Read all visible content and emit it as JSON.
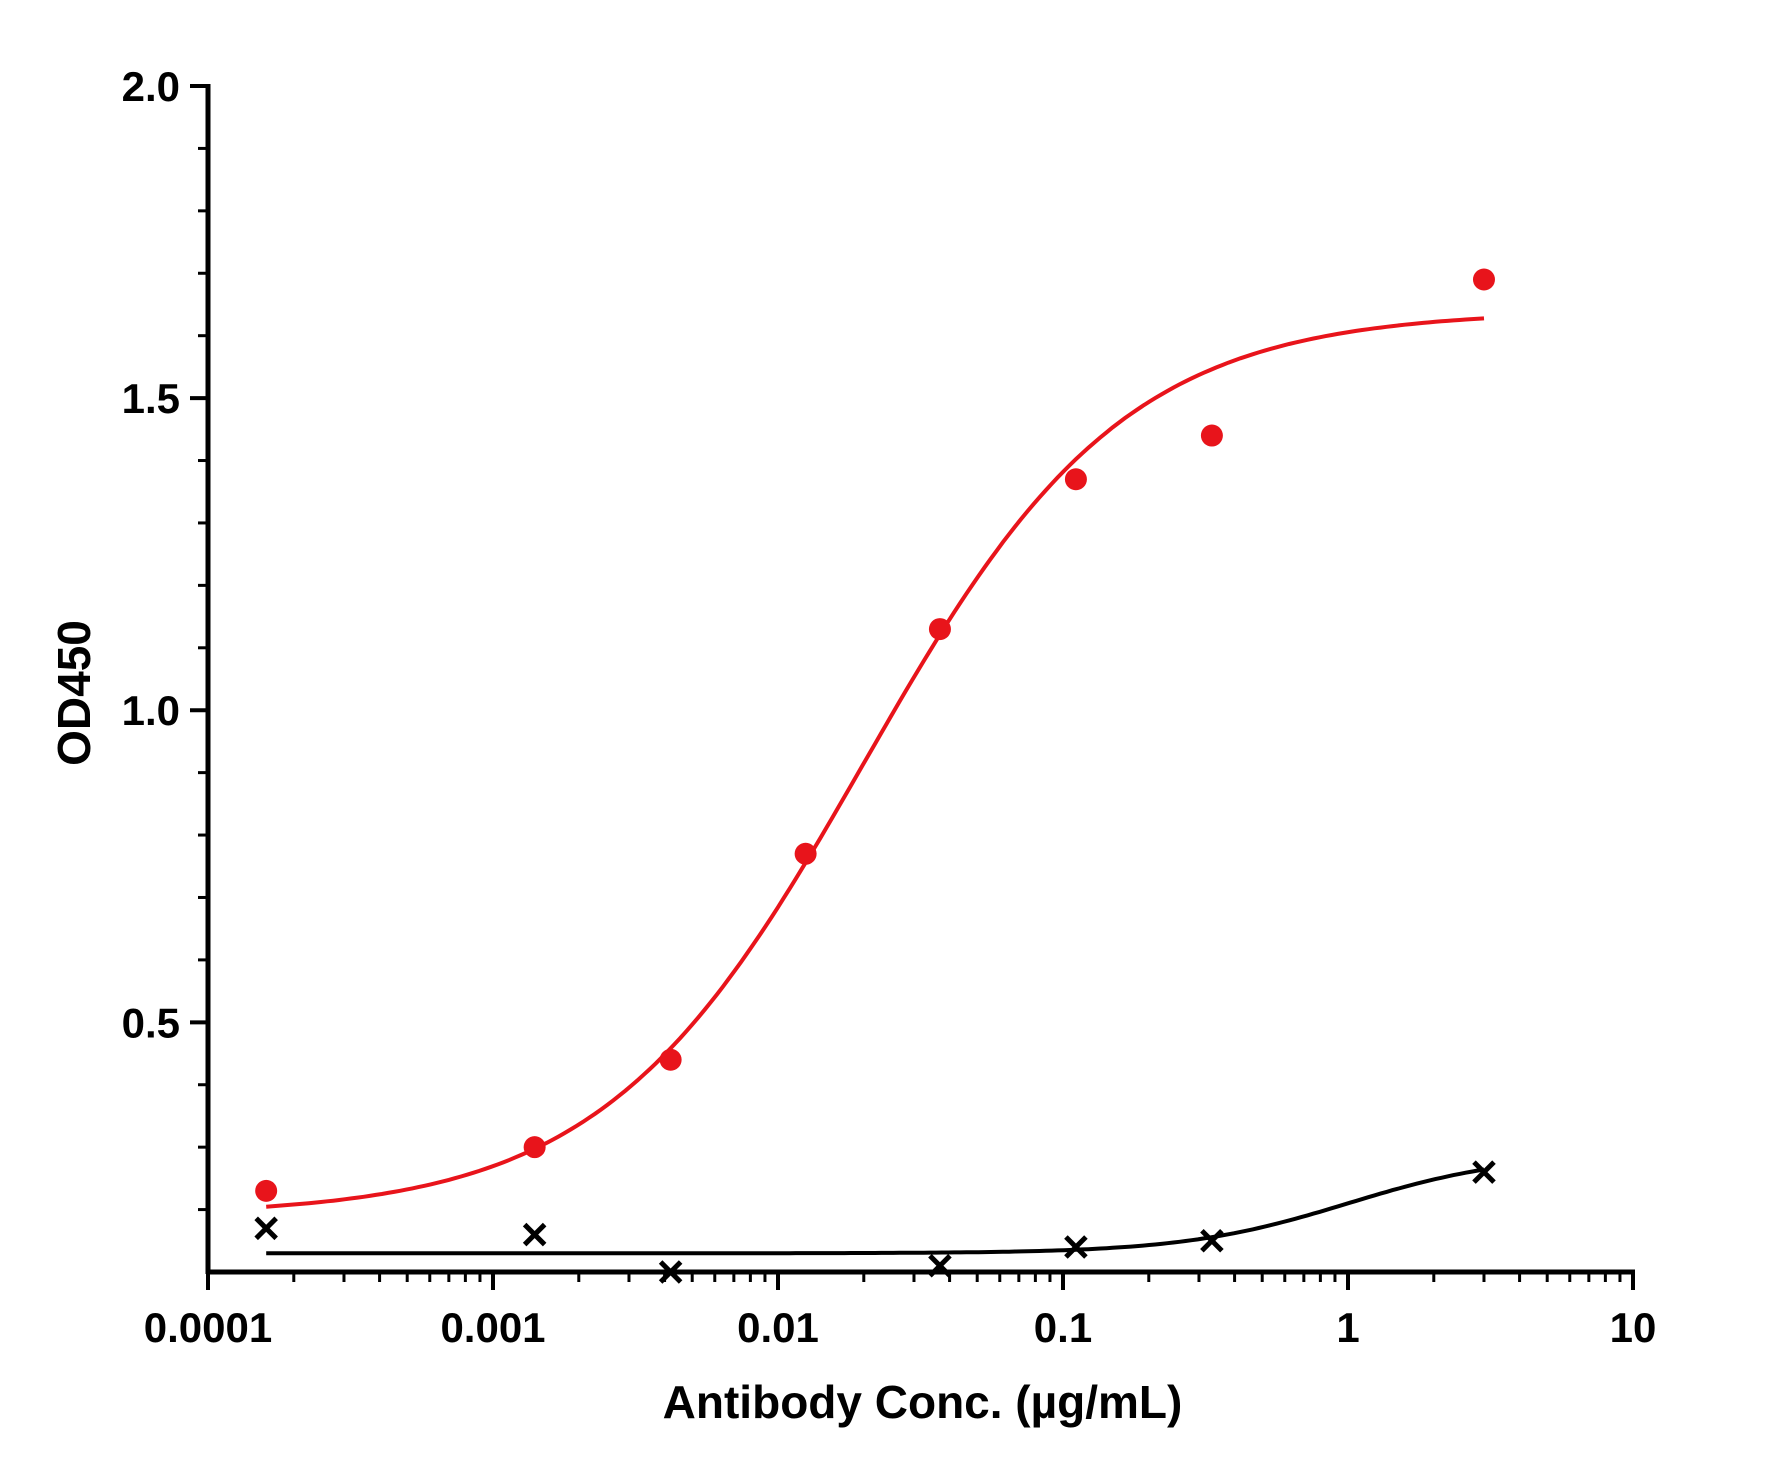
{
  "chart_data": {
    "type": "scatter",
    "xlabel": "Antibody Conc. (µg/mL)",
    "ylabel": "OD450",
    "xscale": "log",
    "xlim": [
      0.0001,
      10
    ],
    "ylim": [
      0.1,
      2.0
    ],
    "x_ticks": [
      {
        "value": 0.0001,
        "label": "0.0001"
      },
      {
        "value": 0.001,
        "label": "0.001"
      },
      {
        "value": 0.01,
        "label": "0.01"
      },
      {
        "value": 0.1,
        "label": "0.1"
      },
      {
        "value": 1,
        "label": "1"
      },
      {
        "value": 10,
        "label": "10"
      }
    ],
    "y_ticks": [
      {
        "value": 0.5,
        "label": "0.5"
      },
      {
        "value": 1.0,
        "label": "1.0"
      },
      {
        "value": 1.5,
        "label": "1.5"
      },
      {
        "value": 2.0,
        "label": "2.0"
      }
    ],
    "grid": false,
    "legend": "none",
    "series": [
      {
        "color": "#e8141b",
        "marker": "circle",
        "x": [
          0.00016,
          0.0014,
          0.0042,
          0.0125,
          0.037,
          0.111,
          0.333,
          3.0
        ],
        "y": [
          0.23,
          0.3,
          0.44,
          0.77,
          1.13,
          1.37,
          1.44,
          1.69
        ],
        "fit": {
          "bottom": 0.19,
          "top": 1.64,
          "ec50": 0.02,
          "hill": 0.95
        }
      },
      {
        "color": "#000000",
        "marker": "x",
        "x": [
          0.00016,
          0.0014,
          0.0042,
          0.037,
          0.111,
          0.333,
          3.0
        ],
        "y": [
          0.17,
          0.16,
          0.1,
          0.11,
          0.14,
          0.15,
          0.26
        ],
        "fit": {
          "bottom": 0.13,
          "top": 0.29,
          "ec50": 1.0,
          "hill": 1.5
        }
      }
    ]
  }
}
